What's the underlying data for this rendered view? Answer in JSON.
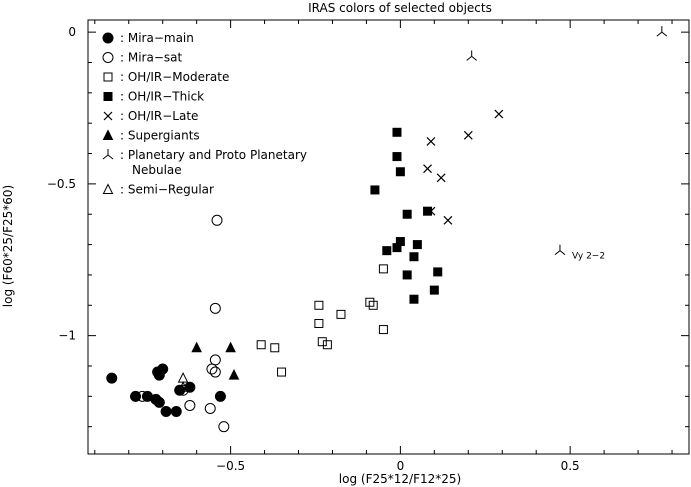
{
  "chart_data": {
    "type": "scatter",
    "title": "IRAS colors of selected objects",
    "xlabel": "log (F25*12/F12*25)",
    "ylabel": "log (F60*25/F25*60)",
    "xlim": [
      -0.92,
      0.85
    ],
    "ylim": [
      -1.39,
      0.04
    ],
    "x_ticks": [
      -0.5,
      0,
      0.5
    ],
    "x_tick_labels": [
      "−0.5",
      "0",
      "0.5"
    ],
    "y_ticks": [
      0,
      -0.5,
      -1
    ],
    "y_tick_labels": [
      "0",
      "−0.5",
      "−1"
    ],
    "grid": false,
    "legend_position": "top-left",
    "series": [
      {
        "name": "Mira−main",
        "marker": "circle-filled",
        "points": [
          [
            -0.85,
            -1.14
          ],
          [
            -0.78,
            -1.2
          ],
          [
            -0.745,
            -1.2
          ],
          [
            -0.72,
            -1.21
          ],
          [
            -0.71,
            -1.22
          ],
          [
            -0.71,
            -1.13
          ],
          [
            -0.715,
            -1.12
          ],
          [
            -0.7,
            -1.11
          ],
          [
            -0.69,
            -1.25
          ],
          [
            -0.66,
            -1.25
          ],
          [
            -0.65,
            -1.18
          ],
          [
            -0.62,
            -1.17
          ],
          [
            -0.53,
            -1.2
          ]
        ]
      },
      {
        "name": "Mira−sat",
        "marker": "circle-open",
        "points": [
          [
            -0.76,
            -1.2
          ],
          [
            -0.64,
            -1.18
          ],
          [
            -0.62,
            -1.23
          ],
          [
            -0.56,
            -1.24
          ],
          [
            -0.555,
            -1.11
          ],
          [
            -0.545,
            -1.08
          ],
          [
            -0.545,
            -1.12
          ],
          [
            -0.545,
            -0.91
          ],
          [
            -0.54,
            -0.62
          ],
          [
            -0.52,
            -1.3
          ]
        ]
      },
      {
        "name": "OH/IR−Moderate",
        "marker": "square-open",
        "points": [
          [
            -0.41,
            -1.03
          ],
          [
            -0.37,
            -1.04
          ],
          [
            -0.35,
            -1.12
          ],
          [
            -0.24,
            -0.9
          ],
          [
            -0.24,
            -0.96
          ],
          [
            -0.23,
            -1.02
          ],
          [
            -0.215,
            -1.03
          ],
          [
            -0.175,
            -0.93
          ],
          [
            -0.09,
            -0.89
          ],
          [
            -0.08,
            -0.9
          ],
          [
            -0.05,
            -0.98
          ],
          [
            -0.05,
            -0.78
          ]
        ]
      },
      {
        "name": "OH/IR−Thick",
        "marker": "square-filled",
        "points": [
          [
            -0.075,
            -0.52
          ],
          [
            -0.04,
            -0.72
          ],
          [
            -0.01,
            -0.33
          ],
          [
            -0.01,
            -0.41
          ],
          [
            -0.01,
            -0.71
          ],
          [
            0.0,
            -0.69
          ],
          [
            0.0,
            -0.46
          ],
          [
            0.02,
            -0.6
          ],
          [
            0.02,
            -0.8
          ],
          [
            0.04,
            -0.74
          ],
          [
            0.04,
            -0.88
          ],
          [
            0.05,
            -0.7
          ],
          [
            0.08,
            -0.59
          ],
          [
            0.1,
            -0.85
          ],
          [
            0.11,
            -0.79
          ]
        ]
      },
      {
        "name": "OH/IR−Late",
        "marker": "x",
        "points": [
          [
            0.08,
            -0.45
          ],
          [
            0.09,
            -0.36
          ],
          [
            0.09,
            -0.59
          ],
          [
            0.12,
            -0.48
          ],
          [
            0.14,
            -0.62
          ],
          [
            0.2,
            -0.34
          ],
          [
            0.29,
            -0.27
          ]
        ]
      },
      {
        "name": "Supergiants",
        "marker": "triangle-filled",
        "points": [
          [
            -0.6,
            -1.04
          ],
          [
            -0.5,
            -1.04
          ],
          [
            -0.49,
            -1.13
          ]
        ]
      },
      {
        "name": "Planetary and Proto Planetary Nebulae",
        "marker": "tripod",
        "points": [
          [
            0.21,
            -0.08
          ],
          [
            0.47,
            -0.72
          ],
          [
            0.77,
            0.0
          ]
        ]
      },
      {
        "name": "Semi−Regular",
        "marker": "triangle-open",
        "points": [
          [
            -0.64,
            -1.14
          ],
          [
            -0.64,
            -1.17
          ]
        ]
      }
    ],
    "annotations": [
      {
        "text": "Vy 2−2",
        "x": 0.47,
        "y": -0.72
      }
    ]
  },
  "legend": {
    "entries": [
      {
        "marker": "circle-filled",
        "label": ": Mira−main"
      },
      {
        "marker": "circle-open",
        "label": ": Mira−sat"
      },
      {
        "marker": "square-open",
        "label": ": OH/IR−Moderate"
      },
      {
        "marker": "square-filled",
        "label": ": OH/IR−Thick"
      },
      {
        "marker": "x",
        "label": ": OH/IR−Late"
      },
      {
        "marker": "triangle-filled",
        "label": ": Supergiants"
      },
      {
        "marker": "tripod",
        "label": ": Planetary and Proto Planetary",
        "label2": "Nebulae"
      },
      {
        "marker": "triangle-open",
        "label": ": Semi−Regular"
      }
    ]
  },
  "colors": {
    "ink": "#000000",
    "background": "#ffffff"
  }
}
